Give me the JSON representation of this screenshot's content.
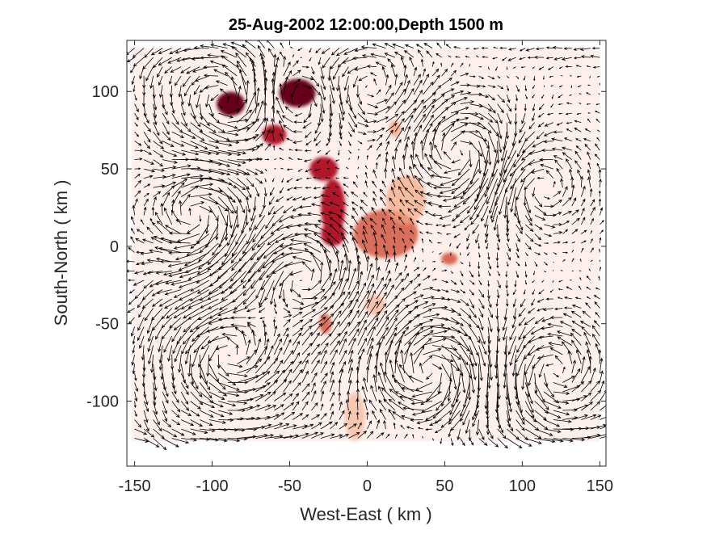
{
  "chart_data": {
    "type": "heatmap",
    "overlay": "quiver",
    "title": "25-Aug-2002 12:00:00,Depth 1500 m",
    "xlabel": "West-East ( km )",
    "ylabel": "South-North ( km )",
    "xlim": [
      -155,
      154
    ],
    "ylim": [
      -142,
      133
    ],
    "xticks": [
      -150,
      -100,
      -50,
      0,
      50,
      100,
      150
    ],
    "yticks": [
      -100,
      -50,
      0,
      50,
      100
    ],
    "grid": false,
    "colormap": [
      "#fdf0ec",
      "#f4a582",
      "#d6604d",
      "#b2182b",
      "#67001f"
    ],
    "field_extent": {
      "x": [
        -152,
        150
      ],
      "y": [
        -126,
        128
      ]
    },
    "heat_blobs": [
      {
        "x": -88,
        "y": 92,
        "sx": 7,
        "sy": 6,
        "v": 1.0
      },
      {
        "x": -45,
        "y": 99,
        "sx": 9,
        "sy": 7,
        "v": 1.0
      },
      {
        "x": -60,
        "y": 72,
        "sx": 6,
        "sy": 5,
        "v": 0.75
      },
      {
        "x": -28,
        "y": 50,
        "sx": 7,
        "sy": 6,
        "v": 0.8
      },
      {
        "x": -22,
        "y": 25,
        "sx": 6,
        "sy": 14,
        "v": 0.85
      },
      {
        "x": -22,
        "y": 8,
        "sx": 6,
        "sy": 6,
        "v": 0.85
      },
      {
        "x": 12,
        "y": 8,
        "sx": 16,
        "sy": 12,
        "v": 0.5
      },
      {
        "x": 25,
        "y": 30,
        "sx": 10,
        "sy": 12,
        "v": 0.3
      },
      {
        "x": 53,
        "y": -8,
        "sx": 4,
        "sy": 3,
        "v": 0.55
      },
      {
        "x": 18,
        "y": 76,
        "sx": 3,
        "sy": 4,
        "v": 0.45
      },
      {
        "x": -27,
        "y": -50,
        "sx": 3,
        "sy": 5,
        "v": 0.5
      },
      {
        "x": 5,
        "y": -38,
        "sx": 5,
        "sy": 5,
        "v": 0.2
      },
      {
        "x": -8,
        "y": -110,
        "sx": 5,
        "sy": 12,
        "v": 0.15
      }
    ],
    "quiver": {
      "grid_step_km": 6,
      "vortices": [
        {
          "x": -90,
          "y": 92,
          "strength": 1.2
        },
        {
          "x": -45,
          "y": 95,
          "strength": -1.0
        },
        {
          "x": -110,
          "y": 20,
          "strength": -1.4
        },
        {
          "x": -40,
          "y": -20,
          "strength": 1.3
        },
        {
          "x": 60,
          "y": 60,
          "strength": -1.4
        },
        {
          "x": 110,
          "y": 40,
          "strength": 1.0
        },
        {
          "x": 40,
          "y": -80,
          "strength": -1.6
        },
        {
          "x": -90,
          "y": -70,
          "strength": 1.4
        },
        {
          "x": 120,
          "y": -80,
          "strength": 1.2
        },
        {
          "x": 0,
          "y": 100,
          "strength": 0.8
        }
      ],
      "southern_jet": {
        "y": -125,
        "speed": 1.8
      },
      "northern_jet": {
        "y": 125,
        "speed": -1.3
      }
    }
  }
}
